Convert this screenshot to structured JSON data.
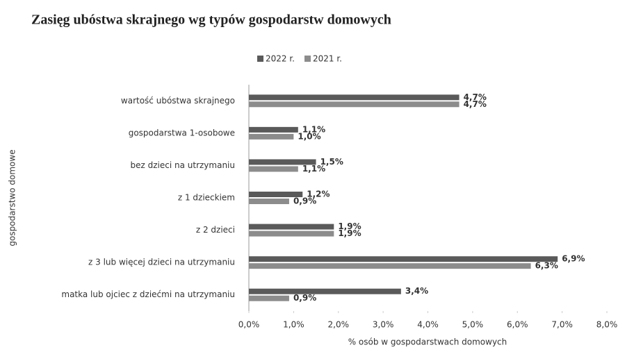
{
  "chart_data": {
    "type": "barh",
    "title": "Zasięg ubóstwa skrajnego wg typów gospodarstw domowych",
    "xlabel": "% osób w gospodarstwach domowych",
    "ylabel": "gospodarstwo domowe",
    "categories": [
      "wartość ubóstwa skrajnego",
      "gospodarstwa 1-osobowe",
      "bez dzieci na utrzymaniu",
      "z 1 dzieckiem",
      "z 2 dzieci",
      "z 3 lub więcej dzieci na utrzymaniu",
      "matka lub ojciec z dziećmi na utrzymaniu"
    ],
    "series": [
      {
        "name": "2022 r.",
        "color": "#5a5a5a",
        "values": [
          4.7,
          1.1,
          1.5,
          1.2,
          1.9,
          6.9,
          3.4
        ],
        "value_labels": [
          "4,7%",
          "1,1%",
          "1,5%",
          "1,2%",
          "1,9%",
          "6,9%",
          "3,4%"
        ]
      },
      {
        "name": "2021 r.",
        "color": "#8c8c8c",
        "values": [
          4.7,
          1.0,
          1.1,
          0.9,
          1.9,
          6.3,
          0.9
        ],
        "value_labels": [
          "4,7%",
          "1,0%",
          "1,1%",
          "0,9%",
          "1,9%",
          "6,3%",
          "0,9%"
        ]
      }
    ],
    "xlim": [
      0,
      8
    ],
    "xticks": [
      {
        "value": 0,
        "label": "0,0%"
      },
      {
        "value": 1,
        "label": "1,0%"
      },
      {
        "value": 2,
        "label": "2,0%"
      },
      {
        "value": 3,
        "label": "3,0%"
      },
      {
        "value": 4,
        "label": "4,0%"
      },
      {
        "value": 5,
        "label": "5,0%"
      },
      {
        "value": 6,
        "label": "6,0%"
      },
      {
        "value": 7,
        "label": "7,0%"
      },
      {
        "value": 8,
        "label": "8,0%"
      }
    ],
    "legend": "top"
  }
}
